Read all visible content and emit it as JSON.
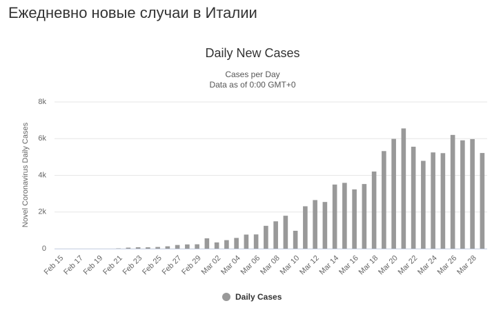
{
  "header": {
    "title": "Ежедневно новые случаи в Италии"
  },
  "chart_data": {
    "type": "bar",
    "title": "Daily New Cases",
    "subtitle": [
      "Cases per Day",
      "Data as of 0:00 GMT+0"
    ],
    "y_label": "Novel Coronavirus Daily Cases",
    "categories": [
      "Feb 15",
      null,
      "Feb 17",
      null,
      "Feb 19",
      null,
      "Feb 21",
      null,
      "Feb 23",
      null,
      "Feb 25",
      null,
      "Feb 27",
      null,
      "Feb 29",
      null,
      "Mar 02",
      null,
      "Mar 04",
      null,
      "Mar 06",
      null,
      "Mar 08",
      null,
      "Mar 10",
      null,
      "Mar 12",
      null,
      "Mar 14",
      null,
      "Mar 16",
      null,
      "Mar 18",
      null,
      "Mar 20",
      null,
      "Mar 22",
      null,
      "Mar 24",
      null,
      "Mar 26",
      null,
      "Mar 28",
      null
    ],
    "series": [
      {
        "name": "Daily Cases",
        "color": "#999999",
        "values": [
          0,
          0,
          0,
          0,
          0,
          0,
          17,
          58,
          79,
          76,
          93,
          130,
          202,
          233,
          240,
          566,
          342,
          466,
          587,
          769,
          778,
          1247,
          1492,
          1797,
          977,
          2313,
          2651,
          2547,
          3497,
          3590,
          3233,
          3526,
          4207,
          5322,
          5986,
          6557,
          5560,
          4789,
          5249,
          5210,
          6203,
          5909,
          5974,
          5217
        ]
      }
    ],
    "ylim": [
      0,
      8000
    ],
    "yticks": [
      0,
      {
        "value": 2000,
        "label": "2k"
      },
      {
        "value": 4000,
        "label": "4k"
      },
      {
        "value": 6000,
        "label": "6k"
      },
      {
        "value": 8000,
        "label": "8k"
      }
    ],
    "grid": true,
    "legend": "bottom"
  }
}
